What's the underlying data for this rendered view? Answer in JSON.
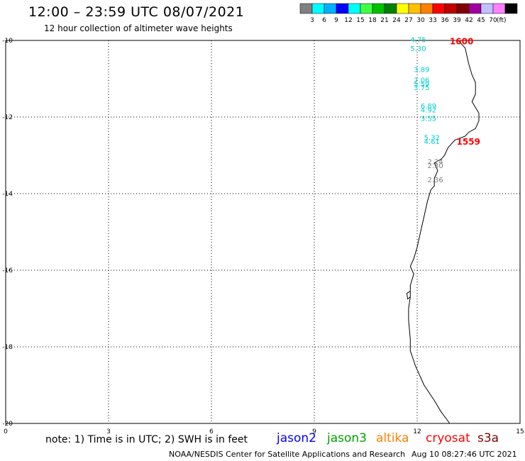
{
  "header": {
    "title": "12:00 – 23:59 UTC 08/07/2021",
    "subtitle": "12 hour collection of altimeter wave heights"
  },
  "colorbar": {
    "colors": [
      "#808080",
      "#00ffff",
      "#00b0ff",
      "#0000ff",
      "#00ffff",
      "#40ff40",
      "#00c000",
      "#008000",
      "#ffff00",
      "#ffc000",
      "#ff8000",
      "#ff0000",
      "#c00000",
      "#800000",
      "#a000a0",
      "#c0c0ff",
      "#ff80ff",
      "#000000"
    ],
    "labels": [
      "3",
      "6",
      "9",
      "12",
      "15",
      "18",
      "21",
      "24",
      "27",
      "30",
      "33",
      "36",
      "39",
      "42",
      "45",
      "70"
    ],
    "unit": "(ft)"
  },
  "map": {
    "lat_range": [
      -20,
      -10
    ],
    "lon_range": [
      0,
      15
    ],
    "x_ticks": [
      "0",
      "3",
      "6",
      "9",
      "12",
      "15"
    ],
    "y_ticks": [
      "-10",
      "-12",
      "-14",
      "-16",
      "-18",
      "-20"
    ],
    "grid": "dotted"
  },
  "measurements": [
    {
      "value": "4.75",
      "lon": 11.8,
      "lat": -10.05,
      "color": "#00d0d0"
    },
    {
      "value": "5.30",
      "lon": 11.8,
      "lat": -10.28,
      "color": "#00d0d0"
    },
    {
      "value": "3.89",
      "lon": 11.9,
      "lat": -10.82,
      "color": "#00d0d0"
    },
    {
      "value": "7.06",
      "lon": 11.9,
      "lat": -11.1,
      "color": "#00d0d0"
    },
    {
      "value": "5.59",
      "lon": 11.9,
      "lat": -11.2,
      "color": "#00d0d0"
    },
    {
      "value": "3.75",
      "lon": 11.9,
      "lat": -11.3,
      "color": "#00d0d0"
    },
    {
      "value": "6.89",
      "lon": 12.1,
      "lat": -11.78,
      "color": "#00d0d0"
    },
    {
      "value": "4.92",
      "lon": 12.1,
      "lat": -11.88,
      "color": "#00d0d0"
    },
    {
      "value": "3.55",
      "lon": 12.1,
      "lat": -12.1,
      "color": "#00d0d0"
    },
    {
      "value": "5.32",
      "lon": 12.2,
      "lat": -12.6,
      "color": "#00d0d0"
    },
    {
      "value": "4.61",
      "lon": 12.2,
      "lat": -12.7,
      "color": "#00d0d0"
    },
    {
      "value": "2.24",
      "lon": 12.3,
      "lat": -13.23,
      "color": "#808080"
    },
    {
      "value": "2.30",
      "lon": 12.3,
      "lat": -13.33,
      "color": "#808080"
    },
    {
      "value": "2.36",
      "lon": 12.3,
      "lat": -13.7,
      "color": "#808080"
    }
  ],
  "pass_times": [
    {
      "value": "1600",
      "lon": 12.95,
      "lat": -10.1,
      "color": "#ff0000"
    },
    {
      "value": "1559",
      "lon": 13.15,
      "lat": -12.72,
      "color": "#ff0000"
    }
  ],
  "coastline": [
    [
      13.2,
      -10.0
    ],
    [
      13.4,
      -10.2
    ],
    [
      13.5,
      -10.6
    ],
    [
      13.6,
      -10.9
    ],
    [
      13.7,
      -11.1
    ],
    [
      13.7,
      -11.4
    ],
    [
      13.6,
      -11.6
    ],
    [
      13.8,
      -11.9
    ],
    [
      13.8,
      -12.1
    ],
    [
      13.7,
      -12.3
    ],
    [
      13.5,
      -12.4
    ],
    [
      13.4,
      -12.5
    ],
    [
      13.1,
      -12.6
    ],
    [
      12.9,
      -12.8
    ],
    [
      12.8,
      -13.0
    ],
    [
      12.7,
      -13.1
    ],
    [
      12.5,
      -13.2
    ],
    [
      12.6,
      -13.4
    ],
    [
      12.5,
      -13.6
    ],
    [
      12.5,
      -13.8
    ],
    [
      12.4,
      -13.9
    ],
    [
      12.3,
      -14.2
    ],
    [
      12.2,
      -14.6
    ],
    [
      12.1,
      -15.0
    ],
    [
      12.0,
      -15.4
    ],
    [
      11.9,
      -15.7
    ],
    [
      11.8,
      -15.9
    ],
    [
      11.9,
      -16.1
    ],
    [
      11.8,
      -16.4
    ],
    [
      11.8,
      -16.7
    ],
    [
      11.75,
      -17.0
    ],
    [
      11.75,
      -17.3
    ],
    [
      11.8,
      -17.8
    ],
    [
      11.8,
      -18.1
    ],
    [
      11.95,
      -18.5
    ],
    [
      12.2,
      -19.0
    ],
    [
      12.5,
      -19.4
    ],
    [
      12.7,
      -19.7
    ],
    [
      12.95,
      -20.0
    ]
  ],
  "coastline_bay": [
    [
      11.8,
      -16.55
    ],
    [
      11.7,
      -16.6
    ],
    [
      11.72,
      -16.75
    ],
    [
      11.8,
      -16.7
    ]
  ],
  "footer": {
    "note": "note: 1) Time is in UTC; 2) SWH is in feet",
    "center": "NOAA/NESDIS Center for Satellite Applications and Research",
    "timestamp": "Aug 10 08:27:46 UTC 2021"
  },
  "legend": [
    {
      "name": "jason2",
      "color": "#0000ff"
    },
    {
      "name": "jason3",
      "color": "#00a000"
    },
    {
      "name": "altika",
      "color": "#ff8000"
    },
    {
      "name": "cryosat",
      "color": "#ff0000"
    },
    {
      "name": "s3a",
      "color": "#800000"
    }
  ]
}
